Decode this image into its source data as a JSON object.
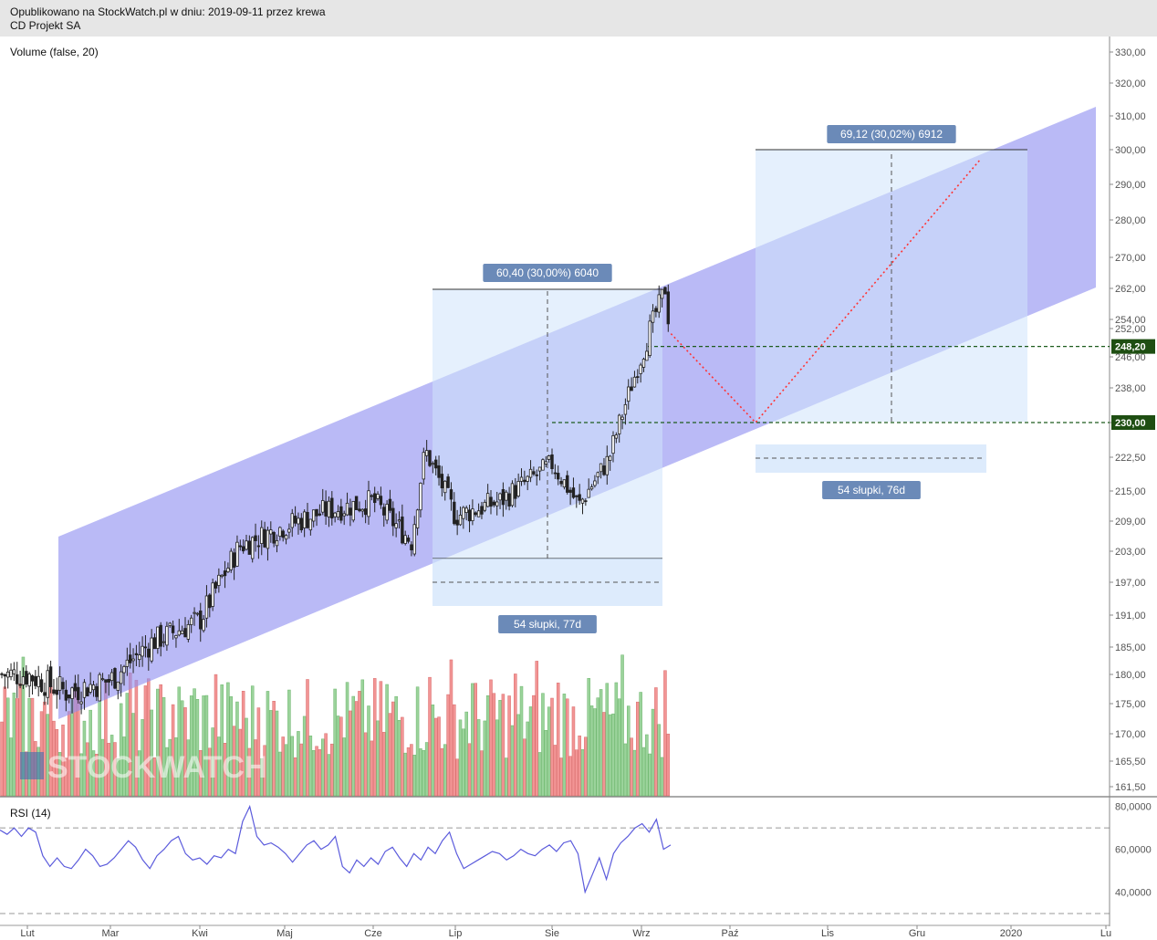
{
  "header": {
    "published": "Opublikowano na StockWatch.pl w dniu: 2019-09-11 przez krewa",
    "instrument": "CD Projekt SA"
  },
  "colors": {
    "up": "#66cc66",
    "down": "#ff4444",
    "vol_up": "#9bd39b",
    "vol_down": "#f29595",
    "channel": "#9090f0",
    "projection": "#cfe3fb",
    "rsi": "#5b5bdc",
    "price_badge": "#1e4e12"
  },
  "watermark": "STOCKWATCH",
  "chart_data": [
    {
      "type": "candlestick",
      "panel": "price",
      "title": "",
      "legend": "Volume (false, 20)",
      "x_tick_labels": [
        "Lut",
        "Mar",
        "Kwi",
        "Maj",
        "Cze",
        "Lip",
        "Sie",
        "Wrz",
        "Paź",
        "Lis",
        "Gru",
        "2020",
        "Lu"
      ],
      "y_tick_labels": [
        "330,00",
        "320,00",
        "310,00",
        "300,00",
        "290,00",
        "280,00",
        "270,00",
        "262,00",
        "254,00",
        "252,00",
        "246,00",
        "238,00",
        "230,00",
        "222,50",
        "215,00",
        "209,00",
        "203,00",
        "197,00",
        "191,00",
        "185,00",
        "180,00",
        "175,00",
        "170,00",
        "165,50",
        "161,50"
      ],
      "ylim": [
        161.5,
        330
      ],
      "grid": false,
      "price_badges": [
        "248,20",
        "230,00"
      ],
      "levels": {
        "current": 248.2,
        "target_low": 230.0
      },
      "ohlc_sampled": [
        {
          "date": "2019-02-01",
          "close": 180
        },
        {
          "date": "2019-02-15",
          "close": 177
        },
        {
          "date": "2019-03-01",
          "close": 179
        },
        {
          "date": "2019-03-15",
          "close": 186
        },
        {
          "date": "2019-04-01",
          "close": 190
        },
        {
          "date": "2019-04-15",
          "close": 204
        },
        {
          "date": "2019-05-01",
          "close": 208
        },
        {
          "date": "2019-05-15",
          "close": 211
        },
        {
          "date": "2019-06-01",
          "close": 213
        },
        {
          "date": "2019-06-15",
          "close": 205
        },
        {
          "date": "2019-06-20",
          "close": 224
        },
        {
          "date": "2019-07-01",
          "close": 210
        },
        {
          "date": "2019-07-15",
          "close": 213
        },
        {
          "date": "2019-08-01",
          "close": 221
        },
        {
          "date": "2019-08-10",
          "close": 212
        },
        {
          "date": "2019-08-20",
          "close": 222
        },
        {
          "date": "2019-09-01",
          "close": 246
        },
        {
          "date": "2019-09-09",
          "close": 262
        },
        {
          "date": "2019-09-11",
          "close": 248.2
        }
      ],
      "annotations": [
        {
          "label": "60,40 (30,00%) 6040"
        },
        {
          "label": "54 słupki, 77d"
        },
        {
          "label": "69,12 (30,02%) 6912"
        },
        {
          "label": "54 słupki, 76d"
        }
      ]
    },
    {
      "type": "line",
      "panel": "rsi",
      "legend": "RSI (14)",
      "y_tick_labels": [
        "80,0000",
        "60,0000",
        "40,0000"
      ],
      "ylim": [
        30,
        82
      ],
      "levels": [
        70,
        30
      ],
      "series": [
        {
          "values": [
            69,
            67,
            70,
            66,
            70,
            68,
            57,
            52,
            56,
            52,
            51,
            55,
            60,
            57,
            52,
            53,
            56,
            60,
            64,
            61,
            55,
            51,
            57,
            60,
            64,
            66,
            58,
            55,
            56,
            53,
            57,
            56,
            60,
            58,
            73,
            80,
            66,
            62,
            63,
            61,
            58,
            54,
            58,
            62,
            64,
            60,
            62,
            66,
            52,
            49,
            55,
            52,
            56,
            53,
            59,
            61,
            56,
            52,
            58,
            55,
            61,
            58,
            64,
            68,
            58,
            51,
            53,
            55,
            57,
            59,
            58,
            55,
            57,
            60,
            58,
            57,
            60,
            62,
            59,
            63,
            64,
            58,
            40,
            48,
            56,
            46,
            58,
            63,
            66,
            70,
            72,
            68,
            74,
            60,
            62
          ]
        }
      ]
    }
  ]
}
